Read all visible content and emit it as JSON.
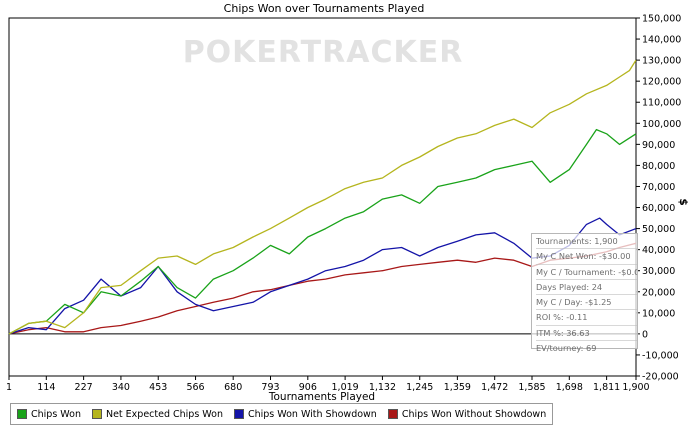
{
  "chart_data": {
    "type": "line",
    "title": "Chips Won over Tournaments Played",
    "xlabel": "Tournaments Played",
    "ylabel": "$",
    "xlim": [
      1,
      1900
    ],
    "ylim": [
      -20000,
      150000
    ],
    "x_ticks": [
      "1",
      "114",
      "227",
      "340",
      "453",
      "566",
      "680",
      "793",
      "906",
      "1,019",
      "1,132",
      "1,245",
      "1,359",
      "1,472",
      "1,585",
      "1,698",
      "1,811",
      "1,900"
    ],
    "x_tick_values": [
      1,
      114,
      227,
      340,
      453,
      566,
      680,
      793,
      906,
      1019,
      1132,
      1245,
      1359,
      1472,
      1585,
      1698,
      1811,
      1900
    ],
    "y_ticks": [
      "-20,000",
      "-10,000",
      "0",
      "10,000",
      "20,000",
      "30,000",
      "40,000",
      "50,000",
      "60,000",
      "70,000",
      "80,000",
      "90,000",
      "100,000",
      "110,000",
      "120,000",
      "130,000",
      "140,000",
      "150,000"
    ],
    "y_tick_values": [
      -20000,
      -10000,
      0,
      10000,
      20000,
      30000,
      40000,
      50000,
      60000,
      70000,
      80000,
      90000,
      100000,
      110000,
      120000,
      130000,
      140000,
      150000
    ],
    "grid": false,
    "legend_position": "bottom",
    "series": [
      {
        "name": "Chips Won",
        "color": "#1aa31a",
        "x": [
          1,
          60,
          114,
          170,
          227,
          280,
          340,
          400,
          453,
          510,
          566,
          620,
          680,
          740,
          793,
          850,
          906,
          960,
          1019,
          1075,
          1132,
          1190,
          1245,
          1300,
          1359,
          1415,
          1472,
          1530,
          1585,
          1640,
          1698,
          1750,
          1780,
          1811,
          1850,
          1900
        ],
        "y": [
          0,
          5000,
          6000,
          14000,
          10000,
          20000,
          18000,
          25000,
          32000,
          22000,
          17000,
          26000,
          30000,
          36000,
          42000,
          38000,
          46000,
          50000,
          55000,
          58000,
          64000,
          66000,
          62000,
          70000,
          72000,
          74000,
          78000,
          80000,
          82000,
          72000,
          78000,
          90000,
          97000,
          95000,
          90000,
          95000
        ]
      },
      {
        "name": "Net Expected Chips Won",
        "color": "#b5b51e",
        "x": [
          1,
          60,
          114,
          170,
          227,
          280,
          340,
          400,
          453,
          510,
          566,
          620,
          680,
          740,
          793,
          850,
          906,
          960,
          1019,
          1075,
          1132,
          1190,
          1245,
          1300,
          1359,
          1415,
          1472,
          1530,
          1585,
          1640,
          1698,
          1750,
          1811,
          1850,
          1880,
          1900
        ],
        "y": [
          0,
          5000,
          6000,
          3000,
          10000,
          22000,
          23000,
          30000,
          36000,
          37000,
          33000,
          38000,
          41000,
          46000,
          50000,
          55000,
          60000,
          64000,
          69000,
          72000,
          74000,
          80000,
          84000,
          89000,
          93000,
          95000,
          99000,
          102000,
          98000,
          105000,
          109000,
          114000,
          118000,
          122000,
          125000,
          130000
        ]
      },
      {
        "name": "Chips Won With Showdown",
        "color": "#1414a8",
        "x": [
          1,
          60,
          114,
          170,
          227,
          280,
          340,
          400,
          453,
          510,
          566,
          620,
          680,
          740,
          793,
          850,
          906,
          960,
          1019,
          1075,
          1132,
          1190,
          1245,
          1300,
          1359,
          1415,
          1472,
          1530,
          1585,
          1640,
          1698,
          1750,
          1790,
          1811,
          1850,
          1900
        ],
        "y": [
          0,
          3000,
          2000,
          12000,
          16000,
          26000,
          18000,
          22000,
          32000,
          20000,
          14000,
          11000,
          13000,
          15000,
          20000,
          23000,
          26000,
          30000,
          32000,
          35000,
          40000,
          41000,
          37000,
          41000,
          44000,
          47000,
          48000,
          43000,
          36000,
          37000,
          42000,
          52000,
          55000,
          52000,
          47000,
          50000
        ]
      },
      {
        "name": "Chips Won Without Showdown",
        "color": "#a81818",
        "x": [
          1,
          60,
          114,
          170,
          227,
          280,
          340,
          400,
          453,
          510,
          566,
          620,
          680,
          740,
          793,
          850,
          906,
          960,
          1019,
          1075,
          1132,
          1190,
          1245,
          1300,
          1359,
          1415,
          1472,
          1530,
          1585,
          1640,
          1698,
          1750,
          1811,
          1850,
          1900
        ],
        "y": [
          0,
          2000,
          3000,
          1000,
          1000,
          3000,
          4000,
          6000,
          8000,
          11000,
          13000,
          15000,
          17000,
          20000,
          21000,
          23000,
          25000,
          26000,
          28000,
          29000,
          30000,
          32000,
          33000,
          34000,
          35000,
          34000,
          36000,
          35000,
          32000,
          35000,
          36000,
          37000,
          39000,
          41000,
          43000
        ]
      }
    ]
  },
  "watermark": "POKERTRACKER",
  "stats": [
    "Tournaments: 1,900",
    "My C Net Won: -$30.00",
    "My C / Tournament: -$0.02",
    "Days Played: 24",
    "My C / Day: -$1.25",
    "ROI %: -0.11",
    "ITM %: 36.63",
    "EV/tourney: 69"
  ]
}
